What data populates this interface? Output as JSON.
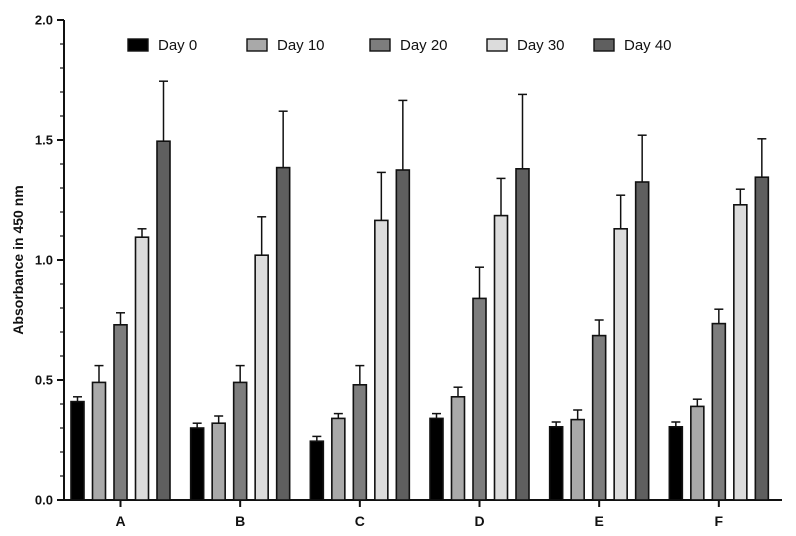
{
  "chart_data": {
    "type": "bar",
    "title": "",
    "xlabel": "",
    "ylabel": "Absorbance in 450 nm",
    "ylim": [
      0,
      2.0
    ],
    "yticks": [
      "0.0",
      "0.5",
      "1.0",
      "1.5",
      "2.0"
    ],
    "categories": [
      "A",
      "B",
      "C",
      "D",
      "E",
      "F"
    ],
    "legend_position": "top",
    "grid": false,
    "error_bars": true,
    "series": [
      {
        "name": "Day 0",
        "color": "#000000",
        "values": [
          0.41,
          0.3,
          0.245,
          0.34,
          0.305,
          0.305
        ],
        "errors": [
          0.02,
          0.02,
          0.02,
          0.02,
          0.02,
          0.02
        ]
      },
      {
        "name": "Day 10",
        "color": "#a9a9a9",
        "values": [
          0.49,
          0.32,
          0.34,
          0.43,
          0.335,
          0.39
        ],
        "errors": [
          0.07,
          0.03,
          0.02,
          0.04,
          0.04,
          0.03
        ]
      },
      {
        "name": "Day 20",
        "color": "#7d7d7d",
        "values": [
          0.73,
          0.49,
          0.48,
          0.84,
          0.685,
          0.735
        ],
        "errors": [
          0.05,
          0.07,
          0.08,
          0.13,
          0.065,
          0.06
        ]
      },
      {
        "name": "Day 30",
        "color": "#dcdcdc",
        "values": [
          1.095,
          1.02,
          1.165,
          1.185,
          1.13,
          1.23
        ],
        "errors": [
          0.035,
          0.16,
          0.2,
          0.155,
          0.14,
          0.065
        ]
      },
      {
        "name": "Day 40",
        "color": "#5f5f5f",
        "values": [
          1.495,
          1.385,
          1.375,
          1.38,
          1.325,
          1.345
        ],
        "errors": [
          0.25,
          0.235,
          0.29,
          0.31,
          0.195,
          0.16
        ]
      }
    ]
  }
}
